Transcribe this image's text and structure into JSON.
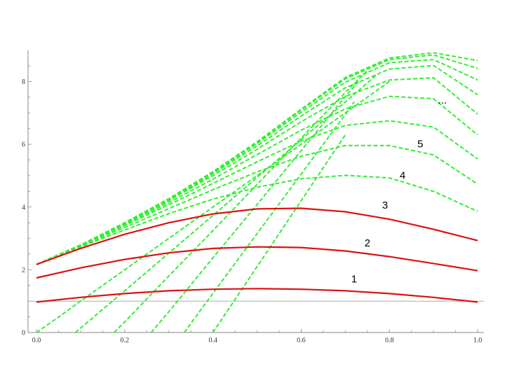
{
  "chart_data": {
    "type": "line",
    "title": "",
    "xlabel": "",
    "ylabel": "",
    "xlim": [
      0,
      1.0
    ],
    "ylim": [
      0,
      9.0
    ],
    "grid": false,
    "x_ticks": [
      {
        "value": 0.0,
        "label": "0.0"
      },
      {
        "value": 0.2,
        "label": "0.2"
      },
      {
        "value": 0.4,
        "label": "0.4"
      },
      {
        "value": 0.6,
        "label": "0.6"
      },
      {
        "value": 0.8,
        "label": "0.8"
      },
      {
        "value": 1.0,
        "label": "1.0"
      }
    ],
    "y_ticks": [
      {
        "value": 0,
        "label": "0"
      },
      {
        "value": 2,
        "label": "2"
      },
      {
        "value": 4,
        "label": "4"
      },
      {
        "value": 6,
        "label": "6"
      },
      {
        "value": 8,
        "label": "8"
      }
    ],
    "reference_lines": [
      {
        "y": 1.0,
        "color": "#aaaaaa"
      }
    ],
    "colors": {
      "solid": "#dd1111",
      "dashed": "#33ee33",
      "axis": "#888888",
      "reference": "#aaaaaa"
    },
    "labels": [
      {
        "text": "1",
        "x": 0.72,
        "y": 1.6
      },
      {
        "text": "2",
        "x": 0.75,
        "y": 2.75
      },
      {
        "text": "3",
        "x": 0.79,
        "y": 3.95
      },
      {
        "text": "4",
        "x": 0.83,
        "y": 4.9
      },
      {
        "text": "5",
        "x": 0.87,
        "y": 5.9
      },
      {
        "text": "...",
        "x": 0.92,
        "y": 7.3
      }
    ],
    "solid_series": [
      {
        "x": [
          0.0,
          0.1,
          0.2,
          0.3,
          0.4,
          0.5,
          0.6,
          0.7,
          0.8,
          0.9,
          1.0
        ],
        "y": [
          0.97,
          1.12,
          1.24,
          1.33,
          1.38,
          1.4,
          1.38,
          1.33,
          1.24,
          1.12,
          0.97
        ]
      },
      {
        "x": [
          0.0,
          0.1,
          0.2,
          0.3,
          0.4,
          0.5,
          0.6,
          0.7,
          0.8,
          0.9,
          1.0
        ],
        "y": [
          1.74,
          2.06,
          2.33,
          2.54,
          2.68,
          2.73,
          2.71,
          2.6,
          2.42,
          2.2,
          1.97
        ]
      },
      {
        "x": [
          0.0,
          0.1,
          0.2,
          0.3,
          0.4,
          0.5,
          0.6,
          0.7,
          0.8,
          0.9,
          1.0
        ],
        "y": [
          2.17,
          2.68,
          3.13,
          3.5,
          3.78,
          3.94,
          3.96,
          3.85,
          3.61,
          3.29,
          2.93
        ]
      }
    ],
    "dashed_series": [
      {
        "x": [
          0.0,
          0.1,
          0.2,
          0.3,
          0.4,
          0.5,
          0.6,
          0.7,
          0.8,
          0.9,
          1.0
        ],
        "y": [
          2.17,
          2.73,
          3.27,
          3.79,
          4.25,
          4.63,
          4.9,
          5.01,
          4.93,
          4.5,
          3.86
        ]
      },
      {
        "x": [
          0.0,
          0.1,
          0.2,
          0.3,
          0.4,
          0.5,
          0.6,
          0.7,
          0.8,
          0.9,
          1.0
        ],
        "y": [
          2.17,
          2.75,
          3.35,
          3.95,
          4.55,
          5.12,
          5.62,
          5.96,
          5.96,
          5.66,
          4.73
        ]
      },
      {
        "x": [
          0.0,
          0.1,
          0.2,
          0.3,
          0.4,
          0.5,
          0.6,
          0.7,
          0.8,
          0.9,
          1.0
        ],
        "y": [
          2.17,
          2.77,
          3.41,
          4.07,
          4.75,
          5.44,
          6.1,
          6.6,
          6.75,
          6.55,
          5.53
        ]
      },
      {
        "x": [
          0.0,
          0.1,
          0.2,
          0.3,
          0.4,
          0.5,
          0.6,
          0.7,
          0.8,
          0.9,
          1.0
        ],
        "y": [
          2.17,
          2.78,
          3.44,
          4.14,
          4.89,
          5.67,
          6.45,
          7.13,
          7.53,
          7.45,
          6.3
        ]
      },
      {
        "x": [
          0.0,
          0.1,
          0.2,
          0.3,
          0.4,
          0.5,
          0.6,
          0.7,
          0.8,
          0.9,
          1.0
        ],
        "y": [
          2.17,
          2.79,
          3.46,
          4.2,
          5.0,
          5.84,
          6.72,
          7.52,
          8.05,
          8.12,
          6.96
        ]
      },
      {
        "x": [
          0.0,
          0.1,
          0.2,
          0.3,
          0.4,
          0.5,
          0.6,
          0.7,
          0.8,
          0.9,
          1.0
        ],
        "y": [
          2.17,
          2.79,
          3.48,
          4.23,
          5.06,
          5.95,
          6.9,
          7.8,
          8.4,
          8.51,
          7.58
        ]
      },
      {
        "x": [
          0.0,
          0.1,
          0.2,
          0.3,
          0.4,
          0.5,
          0.6,
          0.7,
          0.8,
          0.9,
          1.0
        ],
        "y": [
          2.17,
          2.79,
          3.49,
          4.25,
          5.1,
          6.02,
          7.02,
          7.98,
          8.6,
          8.7,
          8.05
        ]
      },
      {
        "x": [
          0.0,
          0.1,
          0.2,
          0.3,
          0.4,
          0.5,
          0.6,
          0.7,
          0.8,
          0.9,
          1.0
        ],
        "y": [
          2.17,
          2.79,
          3.5,
          4.26,
          5.12,
          6.06,
          7.09,
          8.08,
          8.7,
          8.85,
          8.42
        ]
      },
      {
        "x": [
          0.0,
          0.1,
          0.2,
          0.3,
          0.4,
          0.5,
          0.6,
          0.7,
          0.8,
          0.9,
          1.0
        ],
        "y": [
          2.17,
          2.79,
          3.5,
          4.27,
          5.13,
          6.08,
          7.12,
          8.13,
          8.75,
          8.92,
          8.67
        ]
      },
      {
        "x": [
          0.0,
          0.05,
          0.1,
          0.2,
          0.3,
          0.4,
          0.5,
          0.6,
          0.7,
          0.8
        ],
        "y": [
          0.0,
          0.49,
          1.0,
          2.0,
          3.0,
          4.0,
          5.0,
          6.0,
          7.0,
          8.0
        ]
      },
      {
        "x": [
          0.088,
          0.1,
          0.2,
          0.3,
          0.4,
          0.5,
          0.6,
          0.7,
          0.77
        ],
        "y": [
          0.0,
          0.14,
          1.33,
          2.53,
          3.73,
          4.94,
          6.15,
          7.35,
          8.2
        ]
      },
      {
        "x": [
          0.176,
          0.2,
          0.3,
          0.4,
          0.5,
          0.6,
          0.7,
          0.75
        ],
        "y": [
          0.0,
          0.34,
          1.8,
          3.25,
          4.72,
          6.2,
          7.65,
          8.35
        ]
      },
      {
        "x": [
          0.26,
          0.3,
          0.4,
          0.5,
          0.6,
          0.7,
          0.73
        ],
        "y": [
          0.0,
          0.66,
          2.38,
          4.08,
          5.8,
          7.52,
          8.0
        ]
      },
      {
        "x": [
          0.335,
          0.4,
          0.5,
          0.6,
          0.7,
          0.72
        ],
        "y": [
          0.0,
          1.25,
          3.15,
          5.05,
          6.95,
          7.35
        ]
      },
      {
        "x": [
          0.4,
          0.45,
          0.5,
          0.6,
          0.7
        ],
        "y": [
          0.0,
          1.05,
          2.1,
          4.2,
          6.3
        ]
      }
    ]
  }
}
